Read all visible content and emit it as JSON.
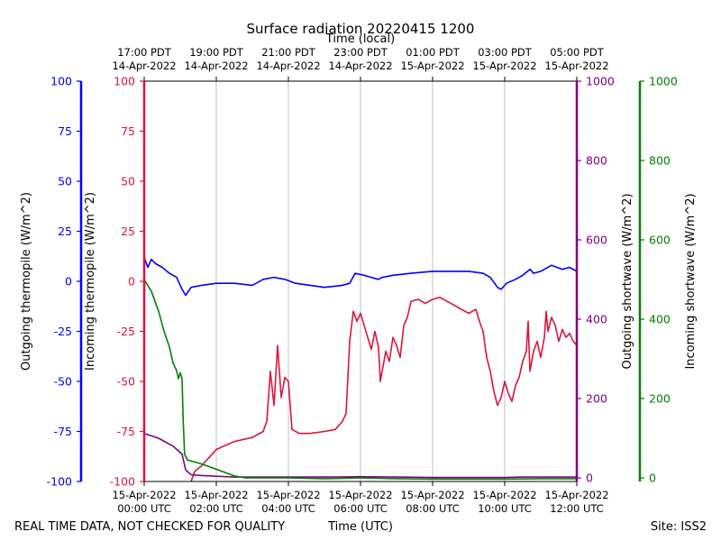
{
  "chart_data": {
    "type": "line",
    "title": "Surface radiation 20220415 1200",
    "top_axis_label": "Time (local)",
    "top_ticks": [
      {
        "x": 0,
        "line1": "17:00 PDT",
        "line2": "14-Apr-2022"
      },
      {
        "x": 2,
        "line1": "19:00 PDT",
        "line2": "14-Apr-2022"
      },
      {
        "x": 4,
        "line1": "21:00 PDT",
        "line2": "14-Apr-2022"
      },
      {
        "x": 6,
        "line1": "23:00 PDT",
        "line2": "14-Apr-2022"
      },
      {
        "x": 8,
        "line1": "01:00 PDT",
        "line2": "15-Apr-2022"
      },
      {
        "x": 10,
        "line1": "03:00 PDT",
        "line2": "15-Apr-2022"
      },
      {
        "x": 12,
        "line1": "05:00 PDT",
        "line2": "15-Apr-2022"
      }
    ],
    "bottom_axis_label": "Time (UTC)",
    "bottom_ticks": [
      {
        "x": 0,
        "line1": "15-Apr-2022",
        "line2": "00:00 UTC"
      },
      {
        "x": 2,
        "line1": "15-Apr-2022",
        "line2": "02:00 UTC"
      },
      {
        "x": 4,
        "line1": "15-Apr-2022",
        "line2": "04:00 UTC"
      },
      {
        "x": 6,
        "line1": "15-Apr-2022",
        "line2": "06:00 UTC"
      },
      {
        "x": 8,
        "line1": "15-Apr-2022",
        "line2": "08:00 UTC"
      },
      {
        "x": 10,
        "line1": "15-Apr-2022",
        "line2": "10:00 UTC"
      },
      {
        "x": 12,
        "line1": "15-Apr-2022",
        "line2": "12:00 UTC"
      }
    ],
    "xlim": [
      0,
      12
    ],
    "grid_x": true,
    "axes": {
      "outgoing_thermopile": {
        "label": "Outgoing thermopile (W/m^2)",
        "color": "#0000ff",
        "ylim": [
          -100,
          100
        ],
        "ticks": [
          -100,
          -75,
          -50,
          -25,
          0,
          25,
          50,
          75,
          100
        ]
      },
      "incoming_thermopile": {
        "label": "Incoming thermopile (W/m^2)",
        "color": "#dc143c",
        "ylim": [
          -100,
          100
        ],
        "ticks": [
          -100,
          -75,
          -50,
          -25,
          0,
          25,
          50,
          75,
          100
        ]
      },
      "outgoing_shortwave": {
        "label": "Outgoing shortwave (W/m^2)",
        "color": "#800080",
        "ylim": [
          0,
          1000
        ],
        "ticks": [
          0,
          200,
          400,
          600,
          800,
          1000
        ]
      },
      "incoming_shortwave": {
        "label": "Incoming shortwave (W/m^2)",
        "color": "#008000",
        "ylim": [
          0,
          1000
        ],
        "ticks": [
          0,
          200,
          400,
          600,
          800,
          1000
        ]
      }
    },
    "series": [
      {
        "axis": "outgoing_thermopile",
        "color": "#0000ff",
        "points": [
          [
            0,
            12
          ],
          [
            0.1,
            7
          ],
          [
            0.2,
            11
          ],
          [
            0.3,
            9
          ],
          [
            0.5,
            7
          ],
          [
            0.7,
            4
          ],
          [
            0.9,
            2
          ],
          [
            1.05,
            -4
          ],
          [
            1.15,
            -7
          ],
          [
            1.3,
            -3
          ],
          [
            1.6,
            -2
          ],
          [
            2,
            -1
          ],
          [
            2.5,
            -1
          ],
          [
            3,
            -2
          ],
          [
            3.3,
            1
          ],
          [
            3.6,
            2
          ],
          [
            3.9,
            1
          ],
          [
            4.2,
            -1
          ],
          [
            4.6,
            -2
          ],
          [
            5,
            -3
          ],
          [
            5.5,
            -2
          ],
          [
            5.7,
            -1
          ],
          [
            5.85,
            4
          ],
          [
            6.1,
            3
          ],
          [
            6.3,
            2
          ],
          [
            6.5,
            1
          ],
          [
            6.6,
            2
          ],
          [
            6.9,
            3
          ],
          [
            7.4,
            4
          ],
          [
            8,
            5
          ],
          [
            8.5,
            5
          ],
          [
            9,
            5
          ],
          [
            9.4,
            4
          ],
          [
            9.6,
            2
          ],
          [
            9.8,
            -3
          ],
          [
            9.9,
            -4
          ],
          [
            10.05,
            -1
          ],
          [
            10.3,
            1
          ],
          [
            10.5,
            3
          ],
          [
            10.7,
            6
          ],
          [
            10.8,
            4
          ],
          [
            11,
            5
          ],
          [
            11.3,
            8
          ],
          [
            11.6,
            6
          ],
          [
            11.8,
            7
          ],
          [
            12,
            5
          ]
        ]
      },
      {
        "axis": "incoming_thermopile",
        "color": "#dc143c",
        "points": [
          [
            1.3,
            -100
          ],
          [
            1.4,
            -95
          ],
          [
            1.6,
            -92
          ],
          [
            1.8,
            -88
          ],
          [
            2,
            -84
          ],
          [
            2.5,
            -80
          ],
          [
            3,
            -78
          ],
          [
            3.3,
            -75
          ],
          [
            3.4,
            -70
          ],
          [
            3.5,
            -45
          ],
          [
            3.6,
            -62
          ],
          [
            3.7,
            -32
          ],
          [
            3.8,
            -58
          ],
          [
            3.9,
            -48
          ],
          [
            4,
            -50
          ],
          [
            4.1,
            -74
          ],
          [
            4.3,
            -76
          ],
          [
            4.6,
            -76
          ],
          [
            5,
            -75
          ],
          [
            5.3,
            -74
          ],
          [
            5.5,
            -70
          ],
          [
            5.6,
            -66
          ],
          [
            5.7,
            -30
          ],
          [
            5.8,
            -15
          ],
          [
            5.9,
            -20
          ],
          [
            6,
            -16
          ],
          [
            6.1,
            -22
          ],
          [
            6.2,
            -28
          ],
          [
            6.3,
            -34
          ],
          [
            6.4,
            -25
          ],
          [
            6.5,
            -33
          ],
          [
            6.55,
            -50
          ],
          [
            6.6,
            -45
          ],
          [
            6.7,
            -35
          ],
          [
            6.8,
            -40
          ],
          [
            6.9,
            -28
          ],
          [
            7,
            -32
          ],
          [
            7.1,
            -38
          ],
          [
            7.2,
            -22
          ],
          [
            7.3,
            -18
          ],
          [
            7.4,
            -10
          ],
          [
            7.6,
            -9
          ],
          [
            7.8,
            -11
          ],
          [
            8,
            -9
          ],
          [
            8.2,
            -8
          ],
          [
            8.4,
            -10
          ],
          [
            8.6,
            -12
          ],
          [
            8.8,
            -14
          ],
          [
            9,
            -16
          ],
          [
            9.2,
            -14
          ],
          [
            9.3,
            -20
          ],
          [
            9.4,
            -25
          ],
          [
            9.5,
            -38
          ],
          [
            9.6,
            -45
          ],
          [
            9.7,
            -55
          ],
          [
            9.8,
            -62
          ],
          [
            9.9,
            -58
          ],
          [
            10.0,
            -50
          ],
          [
            10.1,
            -56
          ],
          [
            10.2,
            -60
          ],
          [
            10.3,
            -52
          ],
          [
            10.4,
            -48
          ],
          [
            10.5,
            -40
          ],
          [
            10.6,
            -35
          ],
          [
            10.65,
            -20
          ],
          [
            10.7,
            -45
          ],
          [
            10.8,
            -35
          ],
          [
            10.9,
            -30
          ],
          [
            11,
            -38
          ],
          [
            11.1,
            -28
          ],
          [
            11.15,
            -15
          ],
          [
            11.2,
            -25
          ],
          [
            11.3,
            -18
          ],
          [
            11.4,
            -22
          ],
          [
            11.5,
            -30
          ],
          [
            11.6,
            -24
          ],
          [
            11.7,
            -28
          ],
          [
            11.8,
            -26
          ],
          [
            11.9,
            -30
          ],
          [
            12,
            -32
          ]
        ]
      },
      {
        "axis": "outgoing_shortwave",
        "color": "#800080",
        "points": [
          [
            0,
            112
          ],
          [
            0.4,
            100
          ],
          [
            0.8,
            80
          ],
          [
            1.05,
            60
          ],
          [
            1.15,
            20
          ],
          [
            1.3,
            8
          ],
          [
            1.6,
            6
          ],
          [
            2,
            4
          ],
          [
            2.5,
            2
          ],
          [
            3,
            2
          ],
          [
            4,
            2
          ],
          [
            5,
            2
          ],
          [
            6,
            3
          ],
          [
            7,
            2
          ],
          [
            8,
            1
          ],
          [
            9,
            1
          ],
          [
            10,
            1
          ],
          [
            10.5,
            2
          ],
          [
            11,
            2
          ],
          [
            12,
            2
          ]
        ]
      },
      {
        "axis": "incoming_shortwave",
        "color": "#008000",
        "points": [
          [
            0,
            500
          ],
          [
            0.2,
            470
          ],
          [
            0.4,
            420
          ],
          [
            0.55,
            370
          ],
          [
            0.7,
            330
          ],
          [
            0.8,
            290
          ],
          [
            0.9,
            270
          ],
          [
            0.95,
            250
          ],
          [
            1.0,
            265
          ],
          [
            1.05,
            250
          ],
          [
            1.08,
            150
          ],
          [
            1.12,
            60
          ],
          [
            1.2,
            45
          ],
          [
            1.4,
            40
          ],
          [
            1.6,
            35
          ],
          [
            1.9,
            25
          ],
          [
            2.2,
            15
          ],
          [
            2.5,
            5
          ],
          [
            2.8,
            0
          ],
          [
            3.5,
            0
          ],
          [
            4,
            0
          ],
          [
            5,
            -2
          ],
          [
            6,
            0
          ],
          [
            7,
            -2
          ],
          [
            8,
            -3
          ],
          [
            9,
            -3
          ],
          [
            10,
            -3
          ],
          [
            11,
            -2
          ],
          [
            12,
            -2
          ]
        ]
      }
    ]
  },
  "footer": {
    "left": "REAL TIME DATA, NOT CHECKED FOR QUALITY",
    "right": "Site: ISS2"
  }
}
